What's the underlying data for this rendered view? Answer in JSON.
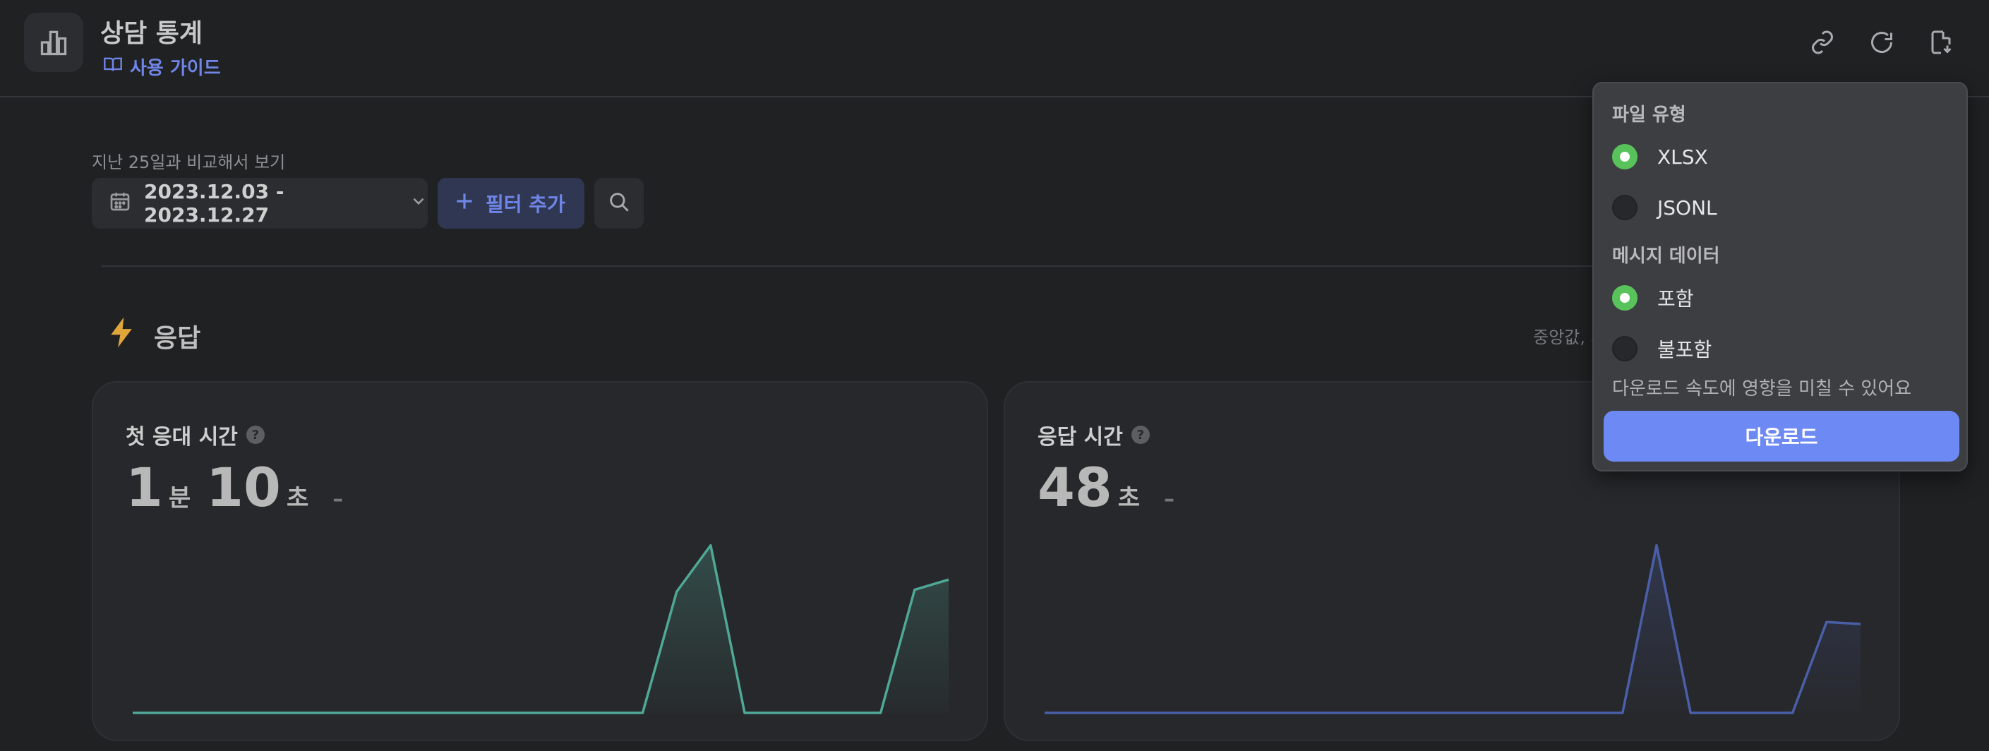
{
  "header": {
    "title": "상담 통계",
    "guide_label": "사용 가이드",
    "icons": [
      "bar-chart-icon",
      "book-icon",
      "link-icon",
      "refresh-icon",
      "file-download-icon"
    ]
  },
  "filters": {
    "compare_label": "지난 25일과 비교해서 보기",
    "date_range": "2023.12.03 - 2023.12.27",
    "add_filter_label": "필터 추가"
  },
  "section": {
    "title": "응답",
    "note": "중앙값, 기"
  },
  "cards": [
    {
      "title": "첫 응대 시간",
      "value_parts": [
        {
          "num": "1",
          "unit": "분"
        },
        {
          "num": "10",
          "unit": "초"
        }
      ],
      "delta": "–"
    },
    {
      "title": "응답 시간",
      "value_parts": [
        {
          "num": "48",
          "unit": "초"
        }
      ],
      "delta": "–"
    }
  ],
  "chart_data": [
    {
      "type": "area",
      "series": [
        {
          "values": [
            0,
            0,
            0,
            0,
            0,
            0,
            0,
            0,
            0,
            0,
            0,
            0,
            0,
            0,
            0,
            0,
            60,
            83,
            0,
            0,
            0,
            0,
            0,
            61,
            66
          ]
        }
      ],
      "color": "#4fa896"
    },
    {
      "type": "area",
      "series": [
        {
          "values": [
            0,
            0,
            0,
            0,
            0,
            0,
            0,
            0,
            0,
            0,
            0,
            0,
            0,
            0,
            0,
            0,
            0,
            0,
            83,
            0,
            0,
            0,
            0,
            45,
            44
          ]
        }
      ],
      "color": "#4a5fa8"
    }
  ],
  "download_menu": {
    "file_type_label": "파일 유형",
    "file_options": [
      {
        "label": "XLSX",
        "selected": true
      },
      {
        "label": "JSONL",
        "selected": false
      }
    ],
    "message_label": "메시지 데이터",
    "message_options": [
      {
        "label": "포함",
        "selected": true
      },
      {
        "label": "불포함",
        "selected": false
      }
    ],
    "note": "다운로드 속도에 영향을 미칠 수 있어요",
    "button_label": "다운로드"
  }
}
